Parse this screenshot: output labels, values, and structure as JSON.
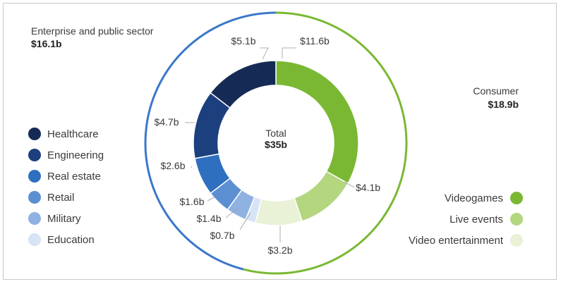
{
  "chart_data": {
    "type": "pie",
    "center": {
      "title": "Total",
      "value": "$35b"
    },
    "groups": [
      {
        "name": "Enterprise and public sector",
        "value": "$16.1b",
        "color": "#3a78c9"
      },
      {
        "name": "Consumer",
        "value": "$18.9b",
        "color": "#7ab833"
      }
    ],
    "slices": [
      {
        "name": "Videogames",
        "value": 11.6,
        "label": "$11.6b",
        "group": "Consumer",
        "color": "#7ab833"
      },
      {
        "name": "Live events",
        "value": 4.1,
        "label": "$4.1b",
        "group": "Consumer",
        "color": "#b3d67f"
      },
      {
        "name": "Video entertainment",
        "value": 3.2,
        "label": "$3.2b",
        "group": "Consumer",
        "color": "#e9f1d6"
      },
      {
        "name": "Education",
        "value": 0.7,
        "label": "$0.7b",
        "group": "Enterprise and public sector",
        "color": "#d6e4f5"
      },
      {
        "name": "Military",
        "value": 1.4,
        "label": "$1.4b",
        "group": "Enterprise and public sector",
        "color": "#8fb2e3"
      },
      {
        "name": "Retail",
        "value": 1.6,
        "label": "$1.6b",
        "group": "Enterprise and public sector",
        "color": "#5b8fd1"
      },
      {
        "name": "Real estate",
        "value": 2.6,
        "label": "$2.6b",
        "group": "Enterprise and public sector",
        "color": "#2f6fc0"
      },
      {
        "name": "Engineering",
        "value": 4.7,
        "label": "$4.7b",
        "group": "Enterprise and public sector",
        "color": "#1c3f7e"
      },
      {
        "name": "Healthcare",
        "value": 5.1,
        "label": "$5.1b",
        "group": "Enterprise and public sector",
        "color": "#152b55"
      }
    ],
    "legend_left": [
      "Healthcare",
      "Engineering",
      "Real estate",
      "Retail",
      "Military",
      "Education"
    ],
    "legend_right": [
      "Videogames",
      "Live events",
      "Video entertainment"
    ]
  }
}
